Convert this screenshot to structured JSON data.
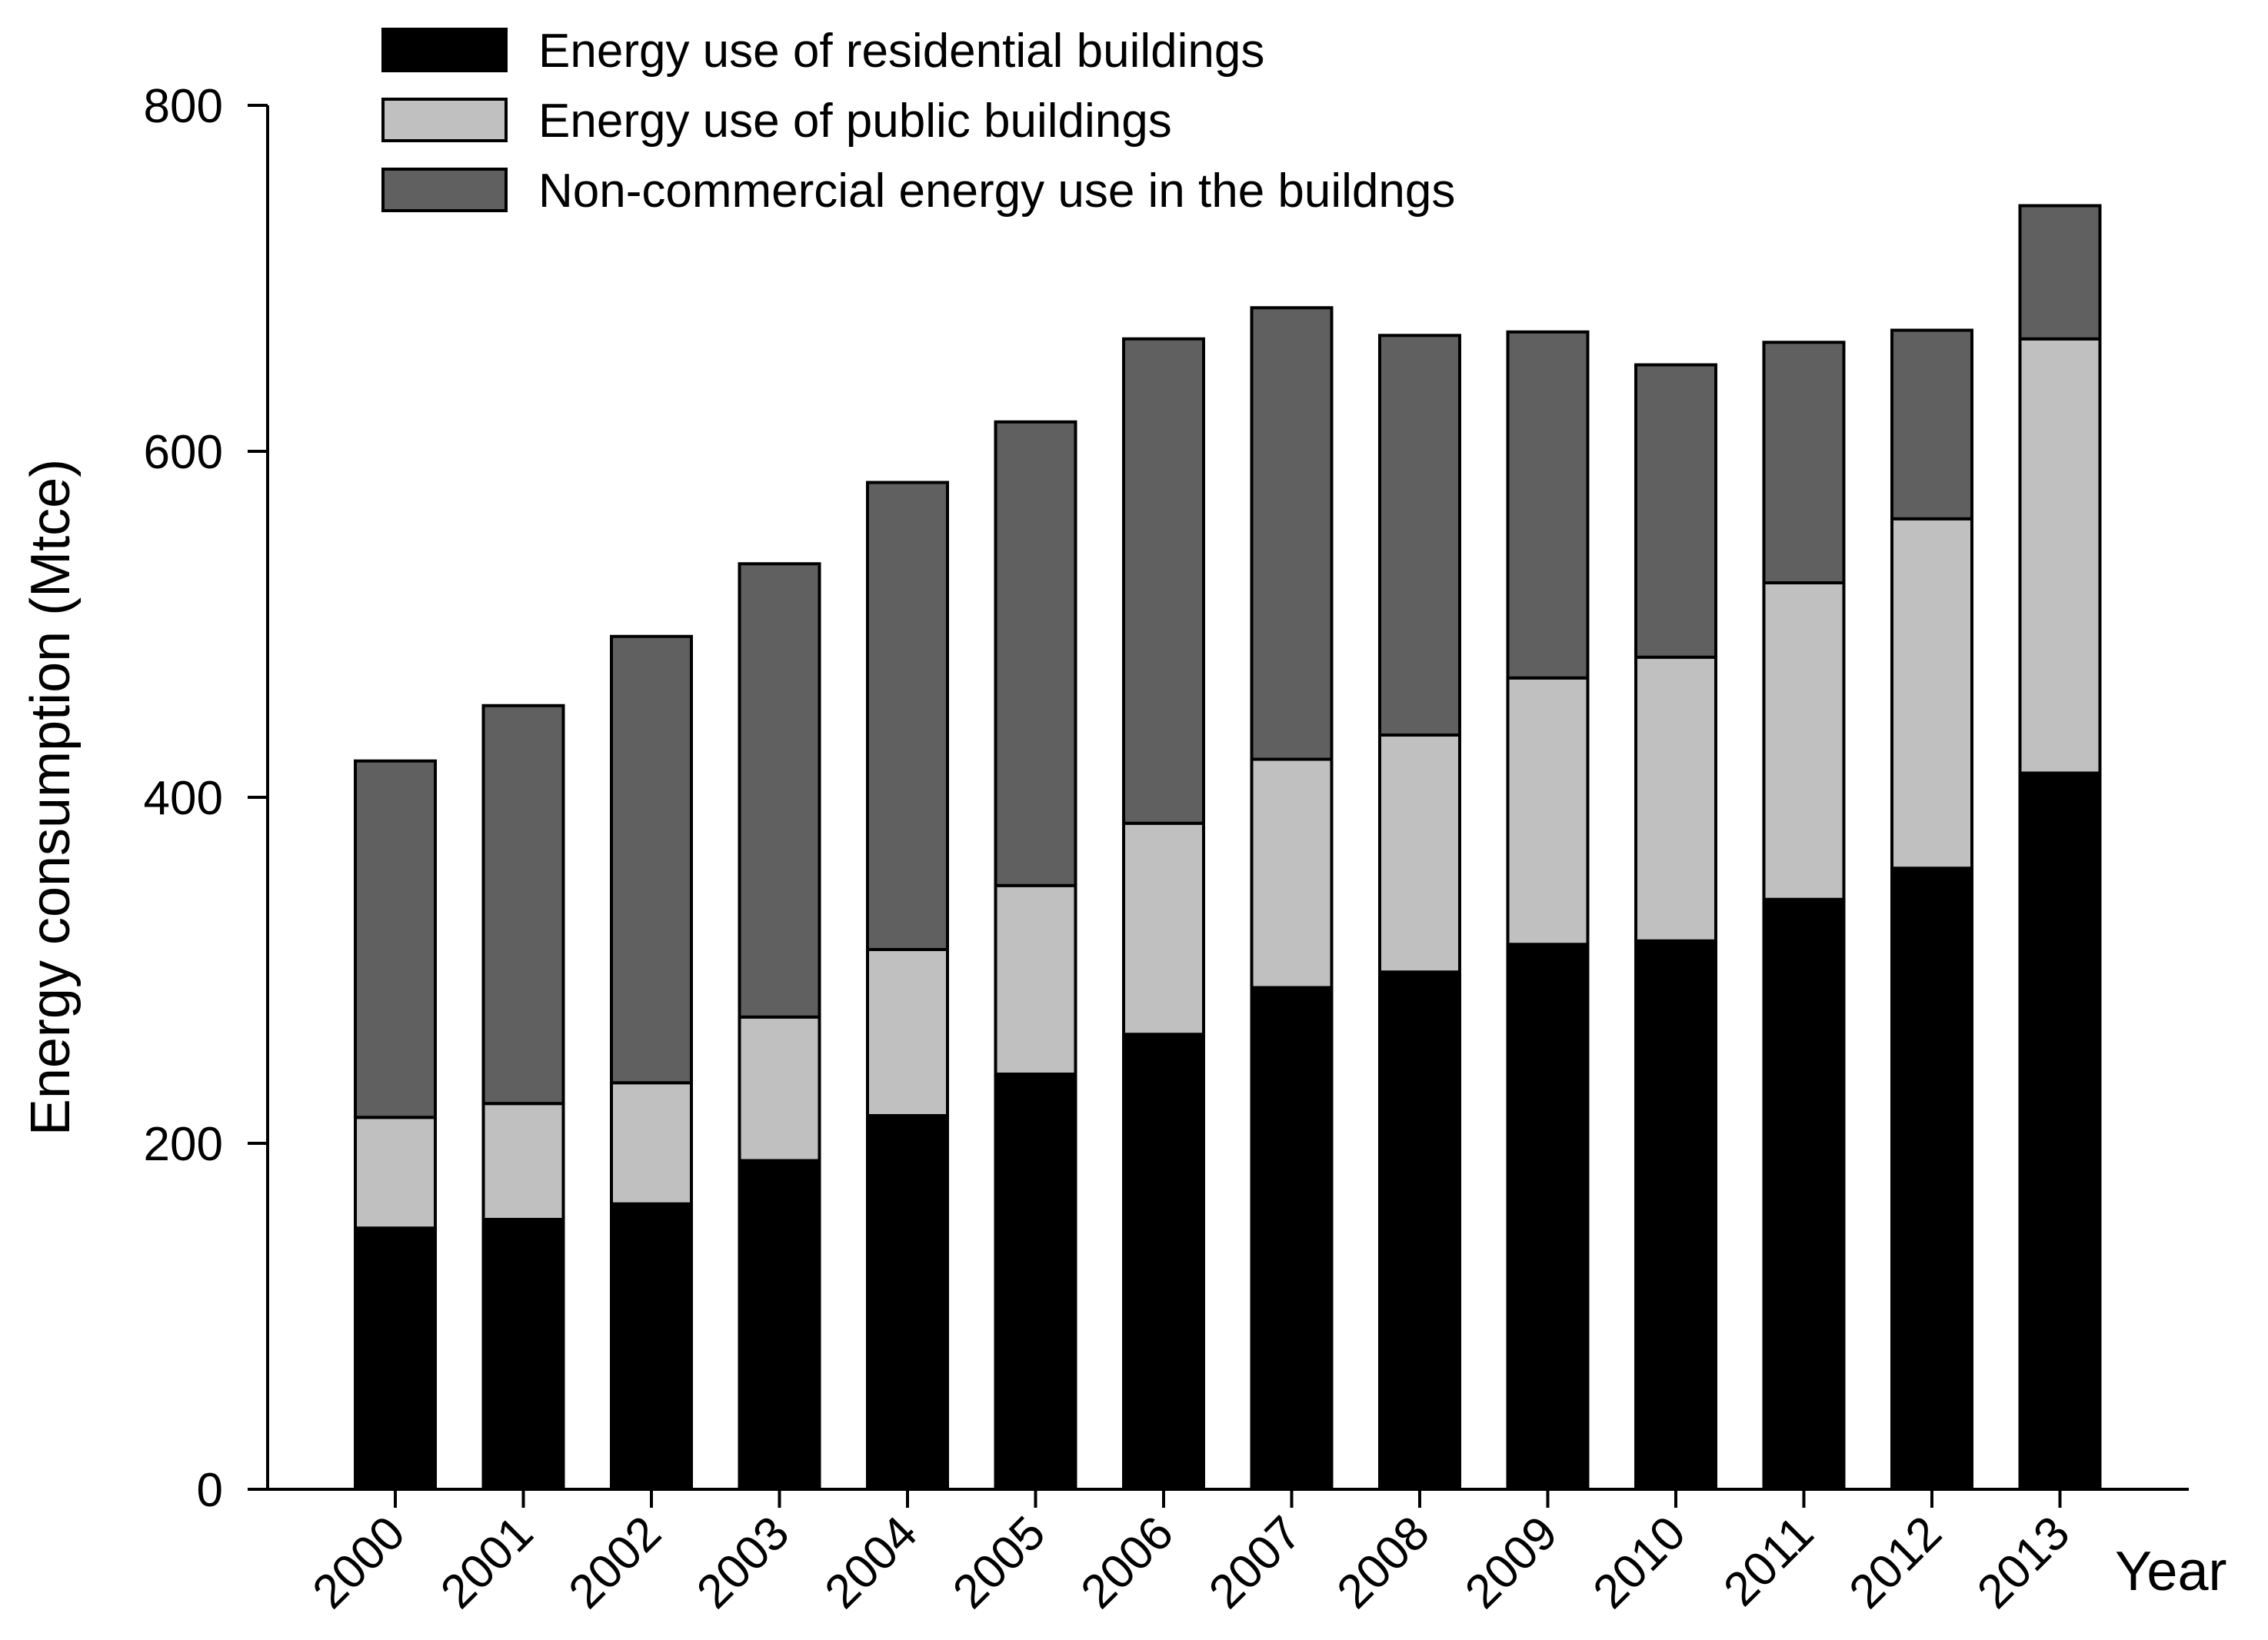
{
  "chart_data": {
    "type": "bar",
    "stacked": true,
    "title": "",
    "xlabel": "Year",
    "ylabel": "Energy consumption (Mtce)",
    "ylim": [
      0,
      800
    ],
    "yticks": [
      0,
      200,
      400,
      600,
      800
    ],
    "ytick_labels": [
      "0",
      "200",
      "400",
      "600",
      "800"
    ],
    "grid": false,
    "legend_position": "top-left",
    "categories": [
      "2000",
      "2001",
      "2002",
      "2003",
      "2004",
      "2005",
      "2006",
      "2007",
      "2008",
      "2009",
      "2010",
      "2011",
      "2012",
      "2013"
    ],
    "series": [
      {
        "name": "Energy use of residential buildings",
        "color": "#000000",
        "values": [
          151,
          156,
          165,
          190,
          216,
          240,
          263,
          290,
          299,
          315,
          317,
          341,
          359,
          414
        ]
      },
      {
        "name": "Energy use of public buildings",
        "color": "#c0c0c0",
        "values": [
          64,
          67,
          70,
          83,
          96,
          109,
          122,
          132,
          137,
          154,
          164,
          183,
          202,
          251
        ]
      },
      {
        "name": "Non-commercial energy use in the buildngs",
        "color": "#606060",
        "values": [
          206,
          230,
          258,
          262,
          270,
          268,
          280,
          261,
          231,
          200,
          169,
          139,
          109,
          77
        ]
      }
    ]
  }
}
